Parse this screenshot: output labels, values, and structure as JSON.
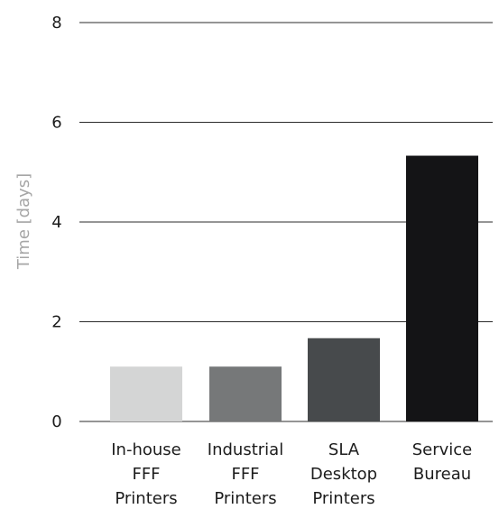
{
  "chart_data": {
    "type": "bar",
    "title": "",
    "xlabel": "",
    "ylabel": "Time [days]",
    "ylim": [
      0,
      8
    ],
    "yticks": [
      "0",
      "2",
      "4",
      "6",
      "8"
    ],
    "grid": true,
    "categories": [
      [
        "In-house",
        "FFF",
        "Printers"
      ],
      [
        "Industrial",
        "FFF",
        "Printers"
      ],
      [
        "SLA",
        "Desktop",
        "Printers"
      ],
      [
        "Service",
        "Bureau"
      ]
    ],
    "values": [
      1.1,
      1.1,
      1.67,
      5.33
    ],
    "colors": [
      "#d4d5d5",
      "#767879",
      "#474a4c",
      "#141416"
    ]
  }
}
